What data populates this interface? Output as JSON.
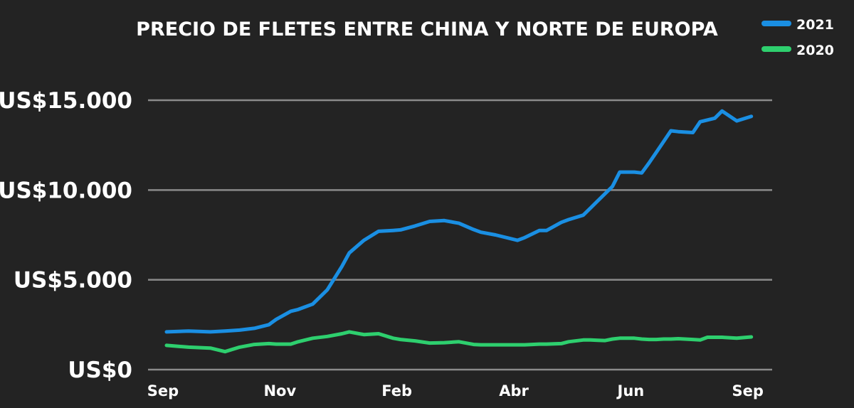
{
  "chart_data": {
    "type": "line",
    "title": "PRECIO DE FLETES ENTRE CHINA Y NORTE DE EUROPA",
    "xlabel": "",
    "ylabel": "",
    "ylim": [
      0,
      15000
    ],
    "y_ticks": [
      {
        "value": 0,
        "label": "US$0"
      },
      {
        "value": 5000,
        "label": "US$5.000"
      },
      {
        "value": 10000,
        "label": "US$10.000"
      },
      {
        "value": 15000,
        "label": "US$15.000"
      }
    ],
    "x_ticks": [
      {
        "week": 0,
        "label": "Sep"
      },
      {
        "week": 8,
        "label": "Nov"
      },
      {
        "week": 16,
        "label": "Feb"
      },
      {
        "week": 24,
        "label": "Abr"
      },
      {
        "week": 32,
        "label": "Jun"
      },
      {
        "week": 40,
        "label": "Sep"
      }
    ],
    "xlim": [
      0,
      40.5
    ],
    "grid": true,
    "legend_position": "top-right",
    "series": [
      {
        "name": "2021",
        "color": "#1a8fe3",
        "x": [
          0,
          1.5,
          3,
          4,
          5,
          6,
          7,
          7.5,
          8.5,
          9,
          10,
          11,
          12,
          12.5,
          13.5,
          14.5,
          15.5,
          16,
          17,
          18,
          19,
          20,
          21,
          21.5,
          22.5,
          24,
          24.5,
          25,
          25.5,
          26,
          27,
          27.5,
          28.5,
          29,
          29.5,
          30,
          30.5,
          31,
          32,
          32.5,
          33,
          33.5,
          34,
          34.5,
          35,
          36,
          36.5,
          37,
          37.5,
          38,
          39,
          40
        ],
        "values": [
          2100,
          2150,
          2100,
          2150,
          2200,
          2300,
          2500,
          2800,
          3250,
          3350,
          3650,
          4450,
          5750,
          6500,
          7200,
          7700,
          7750,
          7780,
          8000,
          8250,
          8300,
          8150,
          7800,
          7650,
          7500,
          7200,
          7350,
          7550,
          7750,
          7750,
          8200,
          8350,
          8600,
          9000,
          9400,
          9800,
          10200,
          11000,
          11000,
          10950,
          11500,
          12100,
          12700,
          13300,
          13250,
          13200,
          13800,
          13900,
          14000,
          14400,
          13850,
          14100
        ]
      },
      {
        "name": "2020",
        "color": "#2ecf6e",
        "x": [
          0,
          1.5,
          3,
          4,
          5,
          6,
          7,
          7.5,
          8.5,
          9,
          10,
          11,
          12,
          12.5,
          13.5,
          14.5,
          15.5,
          16,
          17,
          18,
          19,
          20,
          21,
          21.5,
          22.5,
          24,
          24.5,
          25,
          25.5,
          26,
          27,
          27.5,
          28.5,
          29,
          29.5,
          30,
          30.5,
          31,
          32,
          32.5,
          33,
          33.5,
          34,
          34.5,
          35,
          36,
          36.5,
          37,
          37.5,
          38,
          39,
          40
        ],
        "values": [
          1350,
          1250,
          1200,
          1000,
          1250,
          1400,
          1450,
          1420,
          1420,
          1550,
          1750,
          1850,
          2000,
          2100,
          1950,
          2000,
          1750,
          1680,
          1600,
          1480,
          1500,
          1550,
          1400,
          1380,
          1380,
          1380,
          1380,
          1400,
          1420,
          1420,
          1450,
          1550,
          1650,
          1650,
          1630,
          1620,
          1700,
          1750,
          1750,
          1700,
          1680,
          1680,
          1700,
          1700,
          1720,
          1680,
          1650,
          1800,
          1800,
          1800,
          1750,
          1820
        ]
      }
    ]
  }
}
